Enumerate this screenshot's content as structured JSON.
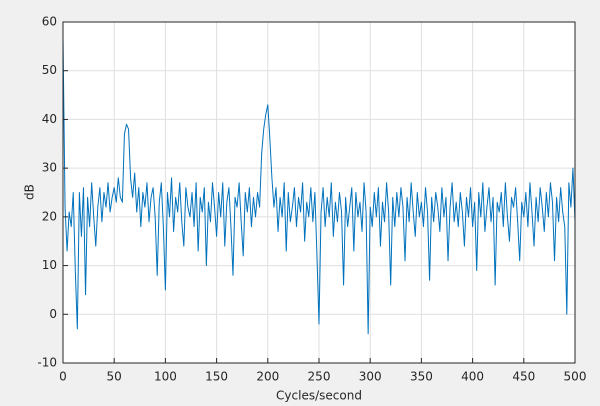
{
  "chart_data": {
    "type": "line",
    "xlabel": "Cycles/second",
    "ylabel": "dB",
    "xlim": [
      0,
      500
    ],
    "ylim": [
      -10,
      60
    ],
    "xticks": [
      0,
      50,
      100,
      150,
      200,
      250,
      300,
      350,
      400,
      450,
      500
    ],
    "yticks": [
      -10,
      0,
      10,
      20,
      30,
      40,
      50,
      60
    ],
    "grid": true,
    "x": [
      0,
      2,
      4,
      6,
      8,
      10,
      12,
      14,
      16,
      18,
      20,
      22,
      24,
      26,
      28,
      30,
      32,
      34,
      36,
      38,
      40,
      42,
      44,
      46,
      48,
      50,
      52,
      54,
      56,
      58,
      60,
      62,
      64,
      66,
      68,
      70,
      72,
      74,
      76,
      78,
      80,
      82,
      84,
      86,
      88,
      90,
      92,
      94,
      96,
      98,
      100,
      102,
      104,
      106,
      108,
      110,
      112,
      114,
      116,
      118,
      120,
      122,
      124,
      126,
      128,
      130,
      132,
      134,
      136,
      138,
      140,
      142,
      144,
      146,
      148,
      150,
      152,
      154,
      156,
      158,
      160,
      162,
      164,
      166,
      168,
      170,
      172,
      174,
      176,
      178,
      180,
      182,
      184,
      186,
      188,
      190,
      192,
      194,
      196,
      198,
      200,
      202,
      204,
      206,
      208,
      210,
      212,
      214,
      216,
      218,
      220,
      222,
      224,
      226,
      228,
      230,
      232,
      234,
      236,
      238,
      240,
      242,
      244,
      246,
      248,
      250,
      252,
      254,
      256,
      258,
      260,
      262,
      264,
      266,
      268,
      270,
      272,
      274,
      276,
      278,
      280,
      282,
      284,
      286,
      288,
      290,
      292,
      294,
      296,
      298,
      300,
      302,
      304,
      306,
      308,
      310,
      312,
      314,
      316,
      318,
      320,
      322,
      324,
      326,
      328,
      330,
      332,
      334,
      336,
      338,
      340,
      342,
      344,
      346,
      348,
      350,
      352,
      354,
      356,
      358,
      360,
      362,
      364,
      366,
      368,
      370,
      372,
      374,
      376,
      378,
      380,
      382,
      384,
      386,
      388,
      390,
      392,
      394,
      396,
      398,
      400,
      402,
      404,
      406,
      408,
      410,
      412,
      414,
      416,
      418,
      420,
      422,
      424,
      426,
      428,
      430,
      432,
      434,
      436,
      438,
      440,
      442,
      444,
      446,
      448,
      450,
      452,
      454,
      456,
      458,
      460,
      462,
      464,
      466,
      468,
      470,
      472,
      474,
      476,
      478,
      480,
      482,
      484,
      486,
      488,
      490,
      492,
      494,
      496,
      498,
      500
    ],
    "series": [
      {
        "color": "#0072bd",
        "values": [
          57,
          22,
          13,
          21,
          18,
          25,
          9,
          -3,
          25,
          16,
          26,
          4,
          24,
          18,
          27,
          20,
          14,
          22,
          26,
          19,
          25,
          22,
          27,
          21,
          24,
          26,
          23,
          28,
          24,
          23,
          37,
          39,
          38,
          28,
          24,
          29,
          21,
          26,
          18,
          25,
          22,
          27,
          19,
          24,
          26,
          20,
          8,
          23,
          27,
          18,
          5,
          25,
          20,
          28,
          17,
          24,
          21,
          27,
          19,
          14,
          26,
          22,
          20,
          25,
          18,
          27,
          13,
          24,
          21,
          26,
          10,
          23,
          19,
          27,
          22,
          16,
          25,
          20,
          27,
          14,
          23,
          26,
          18,
          8,
          24,
          22,
          27,
          19,
          12,
          25,
          21,
          26,
          18,
          24,
          20,
          25,
          22,
          33,
          38,
          41,
          43,
          36,
          28,
          22,
          26,
          17,
          24,
          20,
          27,
          13,
          25,
          19,
          22,
          26,
          18,
          24,
          21,
          27,
          15,
          23,
          20,
          26,
          19,
          25,
          12,
          -2,
          21,
          26,
          18,
          24,
          20,
          27,
          16,
          23,
          19,
          25,
          21,
          6,
          24,
          18,
          22,
          26,
          13,
          25,
          20,
          23,
          17,
          27,
          21,
          -4,
          22,
          18,
          25,
          20,
          26,
          14,
          23,
          19,
          27,
          21,
          6,
          24,
          18,
          25,
          20,
          26,
          22,
          11,
          24,
          19,
          27,
          21,
          16,
          25,
          20,
          23,
          18,
          26,
          21,
          7,
          24,
          19,
          25,
          22,
          17,
          26,
          20,
          24,
          11,
          22,
          27,
          19,
          23,
          18,
          25,
          21,
          14,
          24,
          20,
          26,
          18,
          23,
          9,
          25,
          20,
          27,
          17,
          22,
          26,
          19,
          24,
          6,
          23,
          21,
          25,
          18,
          27,
          20,
          15,
          24,
          22,
          26,
          19,
          11,
          23,
          20,
          25,
          18,
          27,
          21,
          14,
          24,
          19,
          26,
          22,
          17,
          25,
          20,
          27,
          23,
          11,
          24,
          19,
          26,
          21,
          18,
          0,
          27,
          22,
          30,
          19
        ]
      }
    ]
  }
}
